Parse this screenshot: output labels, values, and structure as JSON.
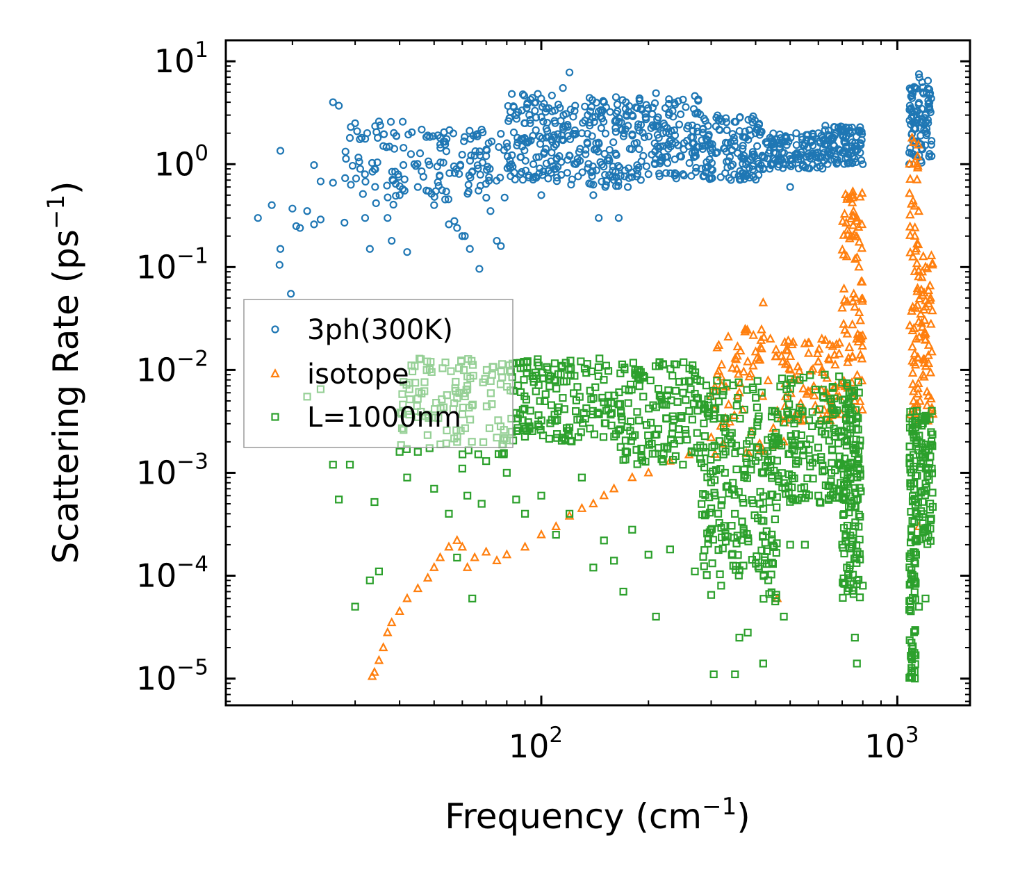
{
  "chart_data": {
    "type": "scatter",
    "xscale": "log",
    "yscale": "log",
    "xlabel": {
      "text": "Frequency (cm",
      "sup": "−1",
      "close": ")"
    },
    "ylabel": {
      "text": "Scattering Rate (ps",
      "sup": "−1",
      "close": ")"
    },
    "xlim": [
      13,
      1600
    ],
    "ylim": [
      5.5e-06,
      16
    ],
    "x_ticks": [
      {
        "value": 100,
        "base": "10",
        "exp": "2"
      },
      {
        "value": 1000,
        "base": "10",
        "exp": "3"
      }
    ],
    "y_ticks": [
      {
        "value": 10,
        "base": "10",
        "exp": "1"
      },
      {
        "value": 1,
        "base": "10",
        "exp": "0"
      },
      {
        "value": 0.1,
        "base": "10",
        "exp": "−1"
      },
      {
        "value": 0.01,
        "base": "10",
        "exp": "−2"
      },
      {
        "value": 0.001,
        "base": "10",
        "exp": "−3"
      },
      {
        "value": 0.0001,
        "base": "10",
        "exp": "−4"
      },
      {
        "value": 1e-05,
        "base": "10",
        "exp": "−5"
      }
    ],
    "legend_position": "center-left",
    "series": [
      {
        "name": "3ph(300K)",
        "marker": "circle",
        "color": "#1f77b4",
        "points": [
          [
            16,
            0.3
          ],
          [
            17.5,
            0.4
          ],
          [
            18.5,
            1.35
          ],
          [
            18.5,
            0.15
          ],
          [
            18.4,
            0.105
          ],
          [
            20,
            0.37
          ],
          [
            20.5,
            0.25
          ],
          [
            21,
            0.24
          ],
          [
            19.8,
            0.055
          ],
          [
            22,
            0.35
          ],
          [
            23,
            0.98
          ],
          [
            24,
            0.68
          ],
          [
            23,
            0.26
          ],
          [
            24,
            0.29
          ],
          [
            26,
            4.0
          ],
          [
            26,
            0.66
          ],
          [
            27,
            3.7
          ],
          [
            28,
            0.27
          ],
          [
            29,
            1.8
          ],
          [
            30,
            2.5
          ],
          [
            31,
            0.9
          ],
          [
            32,
            0.3
          ],
          [
            33,
            0.15
          ],
          [
            35,
            2.6
          ],
          [
            36,
            1.5
          ],
          [
            37,
            0.3
          ],
          [
            38,
            0.18
          ],
          [
            40,
            0.5
          ],
          [
            42,
            0.14
          ],
          [
            44,
            1.0
          ],
          [
            45,
            0.6
          ],
          [
            48,
            1.9
          ],
          [
            50,
            0.4
          ],
          [
            52,
            1.8
          ],
          [
            55,
            0.26
          ],
          [
            57,
            0.28
          ],
          [
            58,
            0.24
          ],
          [
            60,
            0.2
          ],
          [
            61,
            0.2
          ],
          [
            63,
            0.15
          ],
          [
            67,
            0.096
          ],
          [
            70,
            1.2
          ],
          [
            72,
            0.35
          ],
          [
            75,
            0.18
          ],
          [
            77,
            0.16
          ],
          [
            80,
            1.6
          ],
          [
            85,
            3.0
          ],
          [
            90,
            2.5
          ],
          [
            95,
            1.0
          ],
          [
            100,
            0.5
          ],
          [
            105,
            3.5
          ],
          [
            110,
            0.9
          ],
          [
            115,
            5.5
          ],
          [
            120,
            7.8
          ],
          [
            125,
            1.0
          ],
          [
            130,
            2.0
          ],
          [
            135,
            3.0
          ],
          [
            140,
            0.5
          ],
          [
            145,
            0.3
          ],
          [
            150,
            4.0
          ],
          [
            160,
            0.7
          ],
          [
            165,
            0.3
          ],
          [
            175,
            0.6
          ],
          [
            180,
            3.0
          ],
          [
            200,
            0.8
          ],
          [
            210,
            4.9
          ],
          [
            220,
            2.0
          ],
          [
            250,
            0.8
          ],
          [
            270,
            4.6
          ],
          [
            300,
            0.9
          ],
          [
            330,
            2.8
          ],
          [
            350,
            1.5
          ],
          [
            400,
            2.0
          ],
          [
            450,
            1.3
          ],
          [
            500,
            0.6
          ],
          [
            520,
            2.0
          ],
          [
            600,
            2.0
          ],
          [
            700,
            2.3
          ],
          [
            760,
            1.5
          ],
          [
            800,
            1.0
          ],
          [
            1080,
            1.0
          ],
          [
            1100,
            2.0
          ],
          [
            1150,
            7.5
          ],
          [
            1180,
            5.0
          ],
          [
            1200,
            3.0
          ],
          [
            1240,
            3.2
          ]
        ],
        "bands": [
          [
            28,
            45,
            0.4,
            2.6,
            60
          ],
          [
            45,
            80,
            0.45,
            2.2,
            90
          ],
          [
            80,
            110,
            0.7,
            5.0,
            110
          ],
          [
            110,
            170,
            0.6,
            4.5,
            140
          ],
          [
            170,
            280,
            0.7,
            4.6,
            160
          ],
          [
            280,
            420,
            0.7,
            3.0,
            140
          ],
          [
            420,
            620,
            0.9,
            2.0,
            120
          ],
          [
            620,
            800,
            1.0,
            2.4,
            100
          ],
          [
            1080,
            1250,
            1.0,
            7.0,
            90
          ]
        ]
      },
      {
        "name": "isotope",
        "marker": "triangle",
        "color": "#ff7f0e",
        "points": [
          [
            33.5,
            1.05e-05
          ],
          [
            34,
            1.15e-05
          ],
          [
            35,
            1.5e-05
          ],
          [
            36,
            2e-05
          ],
          [
            37,
            2.8e-05
          ],
          [
            38,
            3.5e-05
          ],
          [
            40,
            4.5e-05
          ],
          [
            42,
            6e-05
          ],
          [
            45,
            7.5e-05
          ],
          [
            48,
            9.5e-05
          ],
          [
            50,
            0.00012
          ],
          [
            52,
            0.00015
          ],
          [
            55,
            0.00019
          ],
          [
            58,
            0.00022
          ],
          [
            60,
            0.00019
          ],
          [
            62,
            0.00012
          ],
          [
            65,
            0.00015
          ],
          [
            70,
            0.00017
          ],
          [
            75,
            0.00014
          ],
          [
            80,
            0.00016
          ],
          [
            90,
            0.00019
          ],
          [
            100,
            0.00025
          ],
          [
            110,
            0.0003
          ],
          [
            120,
            0.00038
          ],
          [
            130,
            0.00045
          ],
          [
            140,
            0.0005
          ],
          [
            150,
            0.0006
          ],
          [
            160,
            0.0007
          ],
          [
            180,
            0.0009
          ],
          [
            200,
            0.001
          ],
          [
            230,
            0.0013
          ],
          [
            260,
            0.0015
          ],
          [
            300,
            0.0022
          ],
          [
            330,
            0.003
          ],
          [
            360,
            0.006
          ],
          [
            380,
            0.012
          ],
          [
            400,
            0.015
          ],
          [
            420,
            0.045
          ],
          [
            440,
            0.02
          ],
          [
            460,
            0.004
          ],
          [
            480,
            0.002
          ],
          [
            500,
            0.01
          ],
          [
            550,
            0.018
          ],
          [
            600,
            0.012
          ],
          [
            650,
            0.005
          ],
          [
            700,
            0.04
          ],
          [
            750,
            0.5
          ],
          [
            770,
            0.3
          ],
          [
            780,
            0.1
          ],
          [
            790,
            0.02
          ],
          [
            1100,
            1.8
          ],
          [
            1110,
            1.0
          ],
          [
            1120,
            0.2
          ],
          [
            1130,
            0.02
          ],
          [
            1200,
            0.1
          ],
          [
            1240,
            0.05
          ],
          [
            1250,
            0.015
          ],
          [
            1150,
            0.0003
          ],
          [
            460,
            6e-05
          ]
        ],
        "bands": [
          [
            300,
            460,
            0.0015,
            0.025,
            60
          ],
          [
            470,
            700,
            0.003,
            0.02,
            80
          ],
          [
            700,
            800,
            0.004,
            0.55,
            80
          ],
          [
            1080,
            1150,
            0.002,
            1.9,
            60
          ],
          [
            1150,
            1260,
            0.003,
            0.15,
            50
          ]
        ]
      },
      {
        "name": "L=1000nm",
        "marker": "square",
        "color": "#2ca02c",
        "points": [
          [
            22,
            0.0055
          ],
          [
            24,
            0.0065
          ],
          [
            26,
            0.0012
          ],
          [
            27,
            0.00055
          ],
          [
            29,
            0.0012
          ],
          [
            30,
            5e-05
          ],
          [
            33,
            9e-05
          ],
          [
            34,
            0.00052
          ],
          [
            35,
            0.00011
          ],
          [
            40,
            0.0016
          ],
          [
            42,
            0.0009
          ],
          [
            45,
            0.0016
          ],
          [
            50,
            0.0007
          ],
          [
            55,
            0.0004
          ],
          [
            58,
            0.00015
          ],
          [
            60,
            0.0011
          ],
          [
            62,
            0.0006
          ],
          [
            64,
            6e-05
          ],
          [
            68,
            0.0005
          ],
          [
            70,
            0.0013
          ],
          [
            75,
            0.0022
          ],
          [
            80,
            0.001
          ],
          [
            85,
            0.00055
          ],
          [
            90,
            0.0004
          ],
          [
            100,
            0.0006
          ],
          [
            110,
            0.00025
          ],
          [
            120,
            0.0004
          ],
          [
            130,
            0.0009
          ],
          [
            140,
            0.00012
          ],
          [
            150,
            0.00022
          ],
          [
            160,
            0.00014
          ],
          [
            170,
            7e-05
          ],
          [
            180,
            0.00028
          ],
          [
            200,
            0.00016
          ],
          [
            210,
            4e-05
          ],
          [
            230,
            0.00018
          ],
          [
            250,
            0.0012
          ],
          [
            270,
            0.00011
          ],
          [
            300,
            6.5e-05
          ],
          [
            305,
            1.1e-05
          ],
          [
            320,
            8e-05
          ],
          [
            350,
            1.1e-05
          ],
          [
            360,
            2.5e-05
          ],
          [
            380,
            2.8e-05
          ],
          [
            420,
            1.4e-05
          ],
          [
            430,
            0.00013
          ],
          [
            480,
            4e-05
          ],
          [
            500,
            0.0002
          ],
          [
            550,
            0.0002
          ],
          [
            600,
            0.0006
          ],
          [
            650,
            0.0006
          ],
          [
            700,
            0.0002
          ],
          [
            760,
            2.5e-05
          ],
          [
            770,
            1.4e-05
          ],
          [
            800,
            8e-05
          ],
          [
            1100,
            1.2e-05
          ],
          [
            1120,
            1e-05
          ],
          [
            1150,
            5e-05
          ],
          [
            1200,
            6e-05
          ],
          [
            1250,
            0.004
          ]
        ],
        "bands": [
          [
            40,
            80,
            0.0015,
            0.013,
            120
          ],
          [
            80,
            160,
            0.002,
            0.013,
            160
          ],
          [
            160,
            280,
            0.0012,
            0.012,
            150
          ],
          [
            280,
            420,
            0.0001,
            0.008,
            180
          ],
          [
            420,
            460,
            5e-05,
            0.005,
            60
          ],
          [
            460,
            700,
            0.0005,
            0.009,
            150
          ],
          [
            700,
            790,
            6e-05,
            0.008,
            150
          ],
          [
            1080,
            1130,
            1e-05,
            0.004,
            100
          ],
          [
            1130,
            1260,
            0.0002,
            0.004,
            80
          ]
        ]
      }
    ]
  }
}
